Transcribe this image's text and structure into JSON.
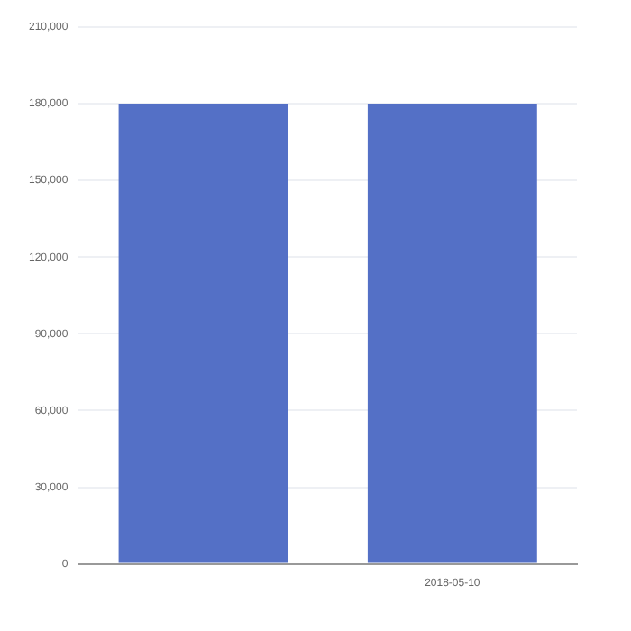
{
  "chart_data": {
    "type": "bar",
    "categories": [
      null,
      "2018-05-10"
    ],
    "values": [
      180000,
      180000
    ],
    "color": "#5470c6",
    "ylim": [
      0,
      210000
    ],
    "yticks": [
      0,
      {
        "value": 30000,
        "label": "30,000"
      },
      {
        "value": 60000,
        "label": "60,000"
      },
      {
        "value": 90000,
        "label": "90,000"
      },
      {
        "value": 120000,
        "label": "120,000"
      },
      {
        "value": 150000,
        "label": "150,000"
      },
      {
        "value": 180000,
        "label": "180,000"
      },
      {
        "value": 210000,
        "label": "210,000"
      }
    ],
    "grid": "y"
  }
}
